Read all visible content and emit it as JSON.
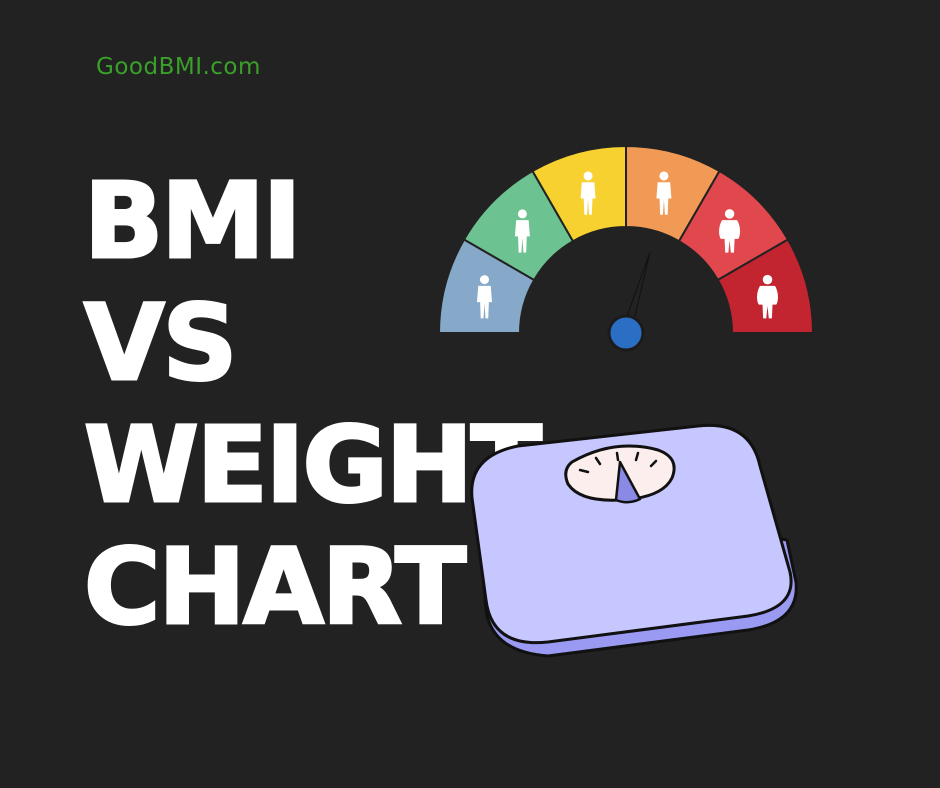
{
  "brand": {
    "site_name": "GoodBMI.com",
    "color": "#3aa02a"
  },
  "headline": {
    "line1": "BMI",
    "line2": "VS",
    "line3": "WEIGHT",
    "line4": "CHART",
    "color": "#ffffff"
  },
  "gauge": {
    "segments": [
      {
        "color": "#86a9c9",
        "icon": "slim-person-icon"
      },
      {
        "color": "#6cc391",
        "icon": "slim-person-icon"
      },
      {
        "color": "#f6d130",
        "icon": "average-person-icon"
      },
      {
        "color": "#f19a55",
        "icon": "average-person-icon"
      },
      {
        "color": "#e1484e",
        "icon": "heavy-person-icon"
      },
      {
        "color": "#c2252f",
        "icon": "heavy-person-icon"
      }
    ],
    "needle_color": "#222222",
    "hub_color": "#2a6fc4"
  },
  "scale": {
    "body_color": "#c7c7ff",
    "edge_color": "#9a9af2",
    "dial_color": "#fdeeee",
    "pointer_color": "#8a8ae6"
  },
  "background": "#222222"
}
